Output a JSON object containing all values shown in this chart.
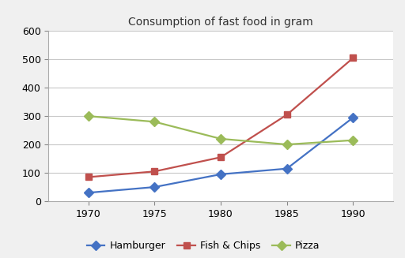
{
  "title": "Consumption of fast food in gram",
  "years": [
    1970,
    1975,
    1980,
    1985,
    1990
  ],
  "series": [
    {
      "label": "Hamburger",
      "values": [
        30,
        50,
        95,
        115,
        295
      ],
      "color": "#4472c4",
      "marker": "D"
    },
    {
      "label": "Fish & Chips",
      "values": [
        85,
        105,
        155,
        305,
        505
      ],
      "color": "#c0504d",
      "marker": "s"
    },
    {
      "label": "Pizza",
      "values": [
        300,
        280,
        220,
        200,
        215
      ],
      "color": "#9bbb59",
      "marker": "D"
    }
  ],
  "xlim": [
    1967,
    1993
  ],
  "ylim": [
    0,
    600
  ],
  "yticks": [
    0,
    100,
    200,
    300,
    400,
    500,
    600
  ],
  "xticks": [
    1970,
    1975,
    1980,
    1985,
    1990
  ],
  "grid_color": "#c8c8c8",
  "background_color": "#ffffff",
  "outer_bg": "#f0f0f0",
  "legend_ncol": 3,
  "title_fontsize": 10,
  "tick_fontsize": 9,
  "legend_fontsize": 9,
  "linewidth": 1.6,
  "markersize": 6
}
